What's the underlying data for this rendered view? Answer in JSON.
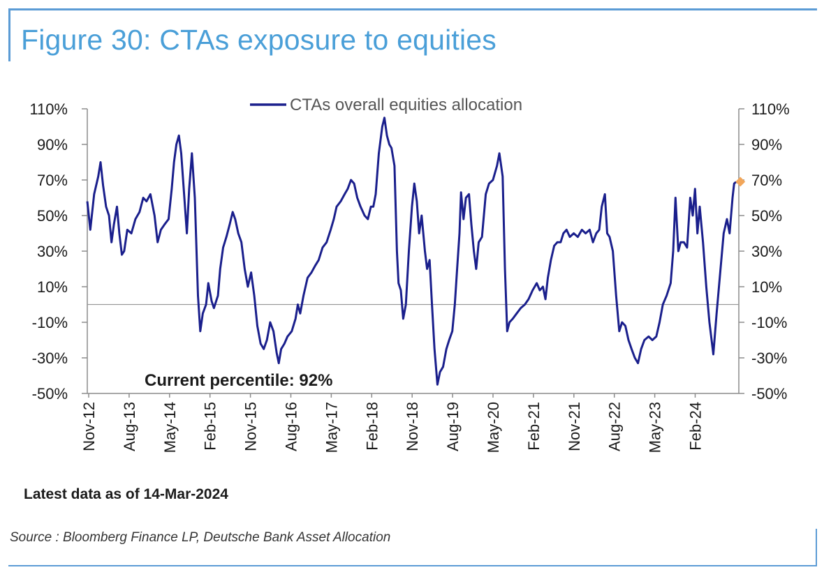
{
  "figure": {
    "title": "Figure 30: CTAs exposure to equities",
    "latest_note": "Latest data as of 14-Mar-2024",
    "source": "Source : Bloomberg Finance LP, Deutsche Bank Asset Allocation",
    "annotation": "Current percentile: 92%"
  },
  "colors": {
    "title": "#4a9fd8",
    "frame": "#5b9bd5",
    "series": "#1a1f8c",
    "latest_marker": "#f2a65a",
    "zero_line": "#999999"
  },
  "chart_data": {
    "type": "line",
    "series": [
      {
        "name": "CTAs overall equities allocation",
        "points": [
          [
            "2012-11-01",
            58
          ],
          [
            "2012-11-20",
            42
          ],
          [
            "2012-12-15",
            62
          ],
          [
            "2013-01-10",
            72
          ],
          [
            "2013-01-25",
            80
          ],
          [
            "2013-02-10",
            67
          ],
          [
            "2013-03-01",
            55
          ],
          [
            "2013-03-20",
            50
          ],
          [
            "2013-04-05",
            35
          ],
          [
            "2013-04-20",
            45
          ],
          [
            "2013-05-10",
            55
          ],
          [
            "2013-05-25",
            40
          ],
          [
            "2013-06-10",
            28
          ],
          [
            "2013-06-25",
            30
          ],
          [
            "2013-07-15",
            42
          ],
          [
            "2013-08-10",
            40
          ],
          [
            "2013-09-05",
            48
          ],
          [
            "2013-10-01",
            52
          ],
          [
            "2013-10-25",
            60
          ],
          [
            "2013-11-15",
            58
          ],
          [
            "2013-12-10",
            62
          ],
          [
            "2014-01-05",
            50
          ],
          [
            "2014-01-25",
            35
          ],
          [
            "2014-02-15",
            42
          ],
          [
            "2014-03-10",
            45
          ],
          [
            "2014-04-05",
            48
          ],
          [
            "2014-04-25",
            65
          ],
          [
            "2014-05-10",
            80
          ],
          [
            "2014-05-25",
            90
          ],
          [
            "2014-06-10",
            95
          ],
          [
            "2014-06-25",
            85
          ],
          [
            "2014-07-15",
            60
          ],
          [
            "2014-07-31",
            40
          ],
          [
            "2014-08-15",
            65
          ],
          [
            "2014-09-01",
            85
          ],
          [
            "2014-09-20",
            60
          ],
          [
            "2014-10-10",
            5
          ],
          [
            "2014-10-25",
            -15
          ],
          [
            "2014-11-10",
            -5
          ],
          [
            "2014-12-01",
            0
          ],
          [
            "2014-12-15",
            12
          ],
          [
            "2015-01-05",
            2
          ],
          [
            "2015-01-20",
            -2
          ],
          [
            "2015-02-15",
            5
          ],
          [
            "2015-03-01",
            20
          ],
          [
            "2015-03-20",
            32
          ],
          [
            "2015-04-10",
            38
          ],
          [
            "2015-05-01",
            45
          ],
          [
            "2015-05-20",
            52
          ],
          [
            "2015-06-05",
            48
          ],
          [
            "2015-06-25",
            40
          ],
          [
            "2015-07-15",
            35
          ],
          [
            "2015-08-05",
            20
          ],
          [
            "2015-08-25",
            10
          ],
          [
            "2015-09-15",
            18
          ],
          [
            "2015-10-05",
            5
          ],
          [
            "2015-10-25",
            -12
          ],
          [
            "2015-11-15",
            -22
          ],
          [
            "2015-12-05",
            -25
          ],
          [
            "2015-12-25",
            -20
          ],
          [
            "2016-01-15",
            -10
          ],
          [
            "2016-02-05",
            -15
          ],
          [
            "2016-02-25",
            -27
          ],
          [
            "2016-03-10",
            -33
          ],
          [
            "2016-03-25",
            -25
          ],
          [
            "2016-04-15",
            -22
          ],
          [
            "2016-05-05",
            -18
          ],
          [
            "2016-06-01",
            -15
          ],
          [
            "2016-06-25",
            -8
          ],
          [
            "2016-07-10",
            0
          ],
          [
            "2016-07-25",
            -5
          ],
          [
            "2016-08-15",
            5
          ],
          [
            "2016-09-10",
            15
          ],
          [
            "2016-10-05",
            18
          ],
          [
            "2016-10-30",
            22
          ],
          [
            "2016-11-20",
            25
          ],
          [
            "2016-12-15",
            32
          ],
          [
            "2017-01-10",
            35
          ],
          [
            "2017-02-05",
            42
          ],
          [
            "2017-02-25",
            48
          ],
          [
            "2017-03-15",
            55
          ],
          [
            "2017-04-10",
            58
          ],
          [
            "2017-05-05",
            62
          ],
          [
            "2017-05-25",
            65
          ],
          [
            "2017-06-15",
            70
          ],
          [
            "2017-07-05",
            68
          ],
          [
            "2017-07-25",
            60
          ],
          [
            "2017-08-15",
            55
          ],
          [
            "2017-09-10",
            50
          ],
          [
            "2017-10-01",
            48
          ],
          [
            "2017-10-20",
            55
          ],
          [
            "2017-11-05",
            55
          ],
          [
            "2017-11-20",
            62
          ],
          [
            "2017-12-10",
            85
          ],
          [
            "2018-01-01",
            100
          ],
          [
            "2018-01-15",
            105
          ],
          [
            "2018-01-31",
            95
          ],
          [
            "2018-02-15",
            90
          ],
          [
            "2018-03-01",
            88
          ],
          [
            "2018-03-20",
            78
          ],
          [
            "2018-04-05",
            30
          ],
          [
            "2018-04-15",
            12
          ],
          [
            "2018-04-30",
            8
          ],
          [
            "2018-05-15",
            -8
          ],
          [
            "2018-06-01",
            0
          ],
          [
            "2018-06-20",
            30
          ],
          [
            "2018-07-10",
            55
          ],
          [
            "2018-07-25",
            68
          ],
          [
            "2018-08-10",
            58
          ],
          [
            "2018-08-25",
            40
          ],
          [
            "2018-09-10",
            50
          ],
          [
            "2018-10-01",
            30
          ],
          [
            "2018-10-15",
            20
          ],
          [
            "2018-10-31",
            25
          ],
          [
            "2018-11-15",
            0
          ],
          [
            "2018-12-01",
            -25
          ],
          [
            "2018-12-20",
            -45
          ],
          [
            "2019-01-05",
            -38
          ],
          [
            "2019-01-25",
            -35
          ],
          [
            "2019-02-15",
            -25
          ],
          [
            "2019-03-05",
            -20
          ],
          [
            "2019-03-25",
            -15
          ],
          [
            "2019-04-10",
            0
          ],
          [
            "2019-04-25",
            20
          ],
          [
            "2019-05-10",
            40
          ],
          [
            "2019-05-20",
            63
          ],
          [
            "2019-06-05",
            48
          ],
          [
            "2019-06-20",
            60
          ],
          [
            "2019-07-10",
            62
          ],
          [
            "2019-07-25",
            45
          ],
          [
            "2019-08-10",
            30
          ],
          [
            "2019-08-25",
            20
          ],
          [
            "2019-09-10",
            35
          ],
          [
            "2019-10-01",
            38
          ],
          [
            "2019-10-25",
            62
          ],
          [
            "2019-11-15",
            68
          ],
          [
            "2019-12-10",
            70
          ],
          [
            "2020-01-05",
            78
          ],
          [
            "2020-01-20",
            85
          ],
          [
            "2020-02-10",
            72
          ],
          [
            "2020-02-25",
            20
          ],
          [
            "2020-03-10",
            -15
          ],
          [
            "2020-03-25",
            -10
          ],
          [
            "2020-04-15",
            -8
          ],
          [
            "2020-05-10",
            -5
          ],
          [
            "2020-06-05",
            -2
          ],
          [
            "2020-07-01",
            0
          ],
          [
            "2020-07-25",
            3
          ],
          [
            "2020-08-20",
            8
          ],
          [
            "2020-09-15",
            12
          ],
          [
            "2020-10-05",
            8
          ],
          [
            "2020-10-25",
            10
          ],
          [
            "2020-11-10",
            3
          ],
          [
            "2020-11-25",
            15
          ],
          [
            "2020-12-15",
            25
          ],
          [
            "2021-01-05",
            33
          ],
          [
            "2021-01-25",
            35
          ],
          [
            "2021-02-15",
            35
          ],
          [
            "2021-03-05",
            40
          ],
          [
            "2021-03-25",
            42
          ],
          [
            "2021-04-15",
            38
          ],
          [
            "2021-05-10",
            40
          ],
          [
            "2021-06-05",
            38
          ],
          [
            "2021-07-01",
            42
          ],
          [
            "2021-07-25",
            40
          ],
          [
            "2021-08-20",
            42
          ],
          [
            "2021-09-10",
            35
          ],
          [
            "2021-10-01",
            40
          ],
          [
            "2021-10-20",
            42
          ],
          [
            "2021-11-05",
            55
          ],
          [
            "2021-11-25",
            62
          ],
          [
            "2021-12-10",
            40
          ],
          [
            "2021-12-25",
            38
          ],
          [
            "2022-01-15",
            30
          ],
          [
            "2022-02-05",
            5
          ],
          [
            "2022-02-25",
            -15
          ],
          [
            "2022-03-15",
            -10
          ],
          [
            "2022-04-05",
            -12
          ],
          [
            "2022-04-25",
            -20
          ],
          [
            "2022-05-15",
            -25
          ],
          [
            "2022-06-05",
            -30
          ],
          [
            "2022-06-25",
            -33
          ],
          [
            "2022-07-15",
            -25
          ],
          [
            "2022-08-05",
            -20
          ],
          [
            "2022-09-01",
            -18
          ],
          [
            "2022-09-25",
            -20
          ],
          [
            "2022-10-20",
            -18
          ],
          [
            "2022-11-10",
            -10
          ],
          [
            "2022-12-01",
            0
          ],
          [
            "2022-12-25",
            5
          ],
          [
            "2023-01-20",
            12
          ],
          [
            "2023-02-05",
            30
          ],
          [
            "2023-02-20",
            60
          ],
          [
            "2023-03-10",
            30
          ],
          [
            "2023-03-25",
            35
          ],
          [
            "2023-04-15",
            35
          ],
          [
            "2023-05-05",
            32
          ],
          [
            "2023-05-25",
            60
          ],
          [
            "2023-06-10",
            50
          ],
          [
            "2023-06-25",
            65
          ],
          [
            "2023-07-10",
            40
          ],
          [
            "2023-07-25",
            55
          ],
          [
            "2023-08-15",
            35
          ],
          [
            "2023-09-05",
            10
          ],
          [
            "2023-09-25",
            -10
          ],
          [
            "2023-10-20",
            -28
          ],
          [
            "2023-11-10",
            -5
          ],
          [
            "2023-12-05",
            20
          ],
          [
            "2023-12-25",
            40
          ],
          [
            "2024-01-15",
            48
          ],
          [
            "2024-02-01",
            40
          ],
          [
            "2024-02-20",
            60
          ],
          [
            "2024-03-01",
            68
          ],
          [
            "2024-03-14",
            69
          ]
        ]
      }
    ],
    "latest_point": {
      "x": "2024-03-14",
      "y": 69
    },
    "x_ticks": [
      "Nov-12",
      "Aug-13",
      "May-14",
      "Feb-15",
      "Nov-15",
      "Aug-16",
      "May-17",
      "Feb-18",
      "Nov-18",
      "Aug-19",
      "May-20",
      "Feb-21",
      "Nov-21",
      "Aug-22",
      "May-23",
      "Feb-24"
    ],
    "y_ticks_left": [
      "110%",
      "90%",
      "70%",
      "50%",
      "30%",
      "10%",
      "-10%",
      "-30%",
      "-50%"
    ],
    "y_ticks_right": [
      "110%",
      "90%",
      "70%",
      "50%",
      "30%",
      "10%",
      "-10%",
      "-30%",
      "-50%"
    ],
    "y_range": [
      -50,
      110
    ],
    "x_range": [
      "2012-11-01",
      "2024-03-31"
    ],
    "grid": false,
    "zero_line": true,
    "legend_placement": "top-center"
  }
}
